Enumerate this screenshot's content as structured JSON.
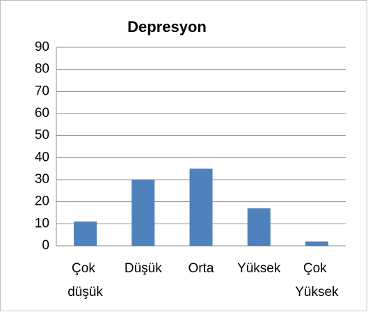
{
  "chart_data": {
    "type": "bar",
    "title": "Depresyon",
    "categories": [
      "Çok düşük",
      "Düşük",
      "Orta",
      "Yüksek",
      "Çok Yüksek"
    ],
    "values": [
      11,
      30,
      35,
      17,
      2
    ],
    "color": "#4f81bd",
    "ylim": [
      0,
      90
    ],
    "yticks": [
      0,
      10,
      20,
      30,
      40,
      50,
      60,
      70,
      80,
      90
    ],
    "grid": true
  }
}
